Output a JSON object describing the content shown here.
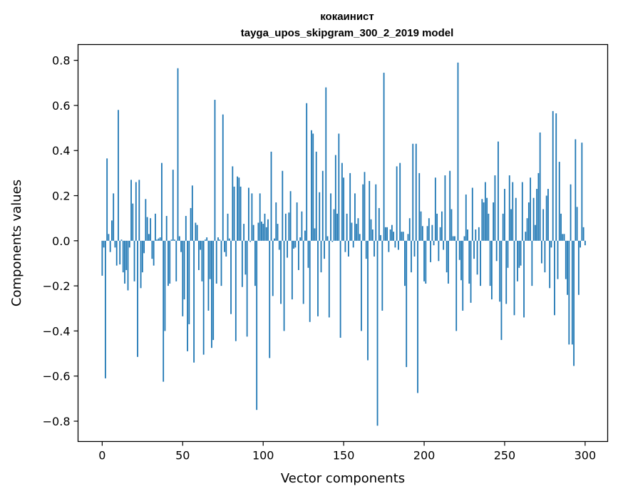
{
  "chart_data": {
    "type": "bar",
    "title": "кокаинист",
    "subtitle": "tayga_upos_skipgram_300_2_2019 model",
    "xlabel": "Vector components",
    "ylabel": "Components values",
    "xlim": [
      -15,
      314
    ],
    "ylim": [
      -0.89,
      0.87
    ],
    "xticks": [
      0,
      50,
      100,
      150,
      200,
      250,
      300
    ],
    "yticks": [
      -0.8,
      -0.6,
      -0.4,
      -0.2,
      0.0,
      0.2,
      0.4,
      0.6,
      0.8
    ],
    "ytick_labels": [
      "−0.8",
      "−0.6",
      "−0.4",
      "−0.2",
      "0.0",
      "0.2",
      "0.4",
      "0.6",
      "0.8"
    ],
    "bar_color": "#1f77b4",
    "grid": false,
    "values": [
      -0.155,
      -0.03,
      -0.61,
      0.365,
      0.03,
      -0.05,
      0.09,
      0.21,
      -0.03,
      -0.11,
      0.58,
      -0.105,
      0.005,
      -0.14,
      -0.19,
      -0.13,
      -0.22,
      -0.03,
      0.27,
      0.165,
      -0.18,
      0.26,
      -0.515,
      0.27,
      -0.21,
      -0.14,
      -0.055,
      0.185,
      0.105,
      0.03,
      0.1,
      -0.08,
      -0.11,
      0.12,
      0.005,
      0.01,
      0.015,
      0.345,
      -0.625,
      -0.4,
      0.11,
      -0.2,
      -0.19,
      0.005,
      0.315,
      0.005,
      -0.18,
      0.765,
      0.02,
      -0.05,
      -0.335,
      -0.26,
      0.11,
      -0.49,
      -0.37,
      0.145,
      0.245,
      -0.54,
      0.08,
      0.07,
      -0.13,
      -0.04,
      -0.18,
      -0.505,
      0.005,
      0.015,
      -0.31,
      -0.17,
      -0.475,
      -0.44,
      0.625,
      -0.19,
      0.015,
      0.005,
      -0.2,
      0.56,
      -0.05,
      -0.07,
      0.12,
      0.01,
      -0.325,
      0.33,
      0.24,
      -0.445,
      0.285,
      0.28,
      0.24,
      -0.205,
      0.075,
      -0.15,
      -0.425,
      0.235,
      -0.005,
      0.21,
      0.07,
      -0.2,
      -0.75,
      0.08,
      0.21,
      0.085,
      0.075,
      0.12,
      0.06,
      0.095,
      -0.52,
      0.395,
      -0.245,
      0.01,
      0.17,
      0.075,
      -0.04,
      -0.28,
      0.31,
      -0.4,
      0.12,
      -0.075,
      0.125,
      0.22,
      -0.26,
      -0.035,
      -0.03,
      0.17,
      -0.13,
      0.015,
      0.13,
      -0.28,
      0.045,
      0.61,
      -0.12,
      -0.36,
      0.49,
      0.475,
      0.055,
      0.395,
      -0.335,
      0.215,
      -0.14,
      0.31,
      -0.08,
      0.68,
      0.02,
      -0.34,
      0.21,
      -0.005,
      0.14,
      0.38,
      0.12,
      0.475,
      -0.43,
      0.345,
      0.28,
      -0.05,
      0.12,
      -0.07,
      0.3,
      0.08,
      -0.03,
      0.21,
      0.075,
      0.1,
      0.03,
      -0.4,
      0.25,
      0.305,
      -0.08,
      -0.53,
      0.265,
      0.095,
      0.05,
      -0.07,
      0.25,
      -0.82,
      0.145,
      0.025,
      -0.31,
      0.745,
      0.06,
      0.06,
      -0.05,
      0.05,
      0.07,
      0.04,
      -0.03,
      0.33,
      -0.04,
      0.345,
      0.04,
      0.04,
      -0.2,
      -0.56,
      0.03,
      0.1,
      -0.14,
      0.43,
      -0.07,
      0.43,
      -0.675,
      0.3,
      0.13,
      0.065,
      -0.18,
      -0.19,
      0.065,
      0.1,
      -0.095,
      0.07,
      -0.02,
      0.28,
      0.12,
      -0.09,
      0.06,
      0.13,
      -0.04,
      0.29,
      -0.14,
      -0.19,
      0.31,
      0.14,
      0.02,
      0.02,
      -0.4,
      0.79,
      -0.085,
      -0.175,
      -0.31,
      0.02,
      0.205,
      0.05,
      -0.19,
      -0.275,
      0.235,
      -0.08,
      0.05,
      -0.15,
      0.06,
      -0.2,
      0.185,
      0.17,
      0.26,
      0.19,
      0.12,
      -0.2,
      -0.26,
      0.17,
      0.29,
      -0.09,
      0.44,
      -0.27,
      -0.44,
      0.12,
      0.23,
      -0.28,
      -0.12,
      0.29,
      0.14,
      0.26,
      -0.33,
      0.19,
      -0.18,
      -0.12,
      -0.11,
      0.26,
      -0.34,
      0.04,
      0.1,
      0.17,
      0.28,
      -0.2,
      0.19,
      0.07,
      0.23,
      0.3,
      0.48,
      -0.1,
      0.14,
      -0.14,
      0.2,
      0.23,
      -0.21,
      -0.03,
      0.575,
      -0.33,
      0.565,
      -0.17,
      0.35,
      0.12,
      0.03,
      0.03,
      -0.17,
      -0.24,
      -0.46,
      0.25,
      -0.46,
      -0.555,
      0.45,
      0.15,
      -0.24,
      -0.03,
      0.435,
      0.06,
      -0.02
    ]
  }
}
